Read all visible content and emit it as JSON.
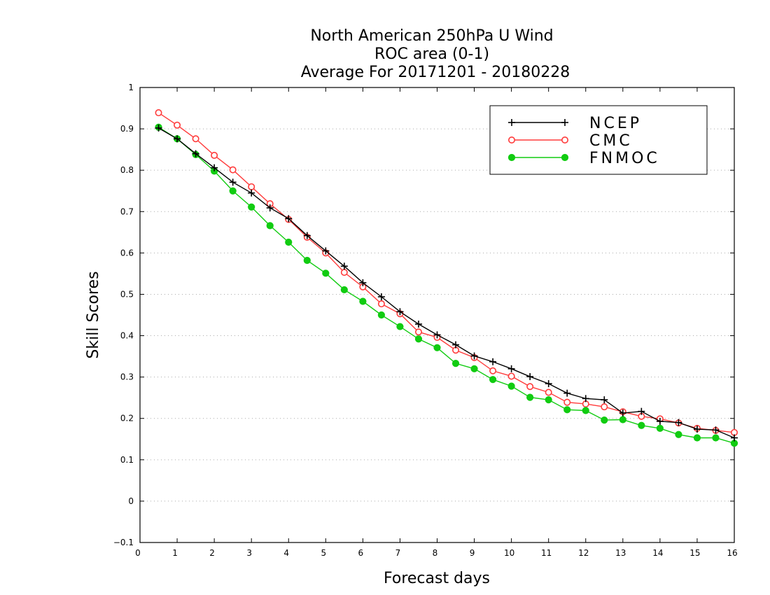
{
  "chart_data": {
    "type": "line",
    "title": [
      "North American 250hPa U Wind",
      "ROC area (0-1)",
      "Average For 20171201 - 20180228"
    ],
    "xlabel": "Forecast days",
    "ylabel": "Skill Scores",
    "xlim": [
      0,
      16
    ],
    "ylim": [
      -0.1,
      1
    ],
    "xticks": [
      "0",
      "1",
      "2",
      "3",
      "4",
      "5",
      "6",
      "7",
      "8",
      "9",
      "10",
      "11",
      "12",
      "13",
      "14",
      "15",
      "16"
    ],
    "yticks": [
      "−0.1",
      "0",
      "0.1",
      "0.2",
      "0.3",
      "0.4",
      "0.5",
      "0.6",
      "0.7",
      "0.8",
      "0.9",
      "1"
    ],
    "grid": "horizontal dotted",
    "legend_position": "top-right",
    "x": [
      0.5,
      1,
      1.5,
      2,
      2.5,
      3,
      3.5,
      4,
      4.5,
      5,
      5.5,
      6,
      6.5,
      7,
      7.5,
      8,
      8.5,
      9,
      9.5,
      10,
      10.5,
      11,
      11.5,
      12,
      12.5,
      13,
      13.5,
      14,
      14.5,
      15,
      15.5,
      16
    ],
    "series": [
      {
        "name": "NCEP",
        "color": "#000000",
        "marker": "plus",
        "values": [
          0.902,
          0.876,
          0.84,
          0.806,
          0.771,
          0.745,
          0.709,
          0.683,
          0.642,
          0.605,
          0.568,
          0.528,
          0.494,
          0.458,
          0.428,
          0.402,
          0.378,
          0.351,
          0.337,
          0.32,
          0.301,
          0.284,
          0.261,
          0.248,
          0.245,
          0.213,
          0.217,
          0.193,
          0.19,
          0.174,
          0.172,
          0.153
        ]
      },
      {
        "name": "CMC",
        "color": "#ff3b3b",
        "marker": "open-circle",
        "values": [
          0.939,
          0.909,
          0.876,
          0.836,
          0.801,
          0.76,
          0.719,
          0.681,
          0.638,
          0.6,
          0.553,
          0.518,
          0.477,
          0.453,
          0.409,
          0.396,
          0.365,
          0.347,
          0.315,
          0.302,
          0.277,
          0.263,
          0.239,
          0.235,
          0.228,
          0.216,
          0.205,
          0.199,
          0.189,
          0.176,
          0.171,
          0.166
        ]
      },
      {
        "name": "FNMOC",
        "color": "#11cc11",
        "marker": "filled-circle",
        "values": [
          0.904,
          0.876,
          0.838,
          0.798,
          0.75,
          0.711,
          0.666,
          0.626,
          0.582,
          0.551,
          0.511,
          0.483,
          0.45,
          0.422,
          0.392,
          0.371,
          0.333,
          0.32,
          0.294,
          0.278,
          0.251,
          0.245,
          0.221,
          0.219,
          0.196,
          0.197,
          0.183,
          0.176,
          0.161,
          0.153,
          0.153,
          0.14
        ]
      }
    ]
  }
}
